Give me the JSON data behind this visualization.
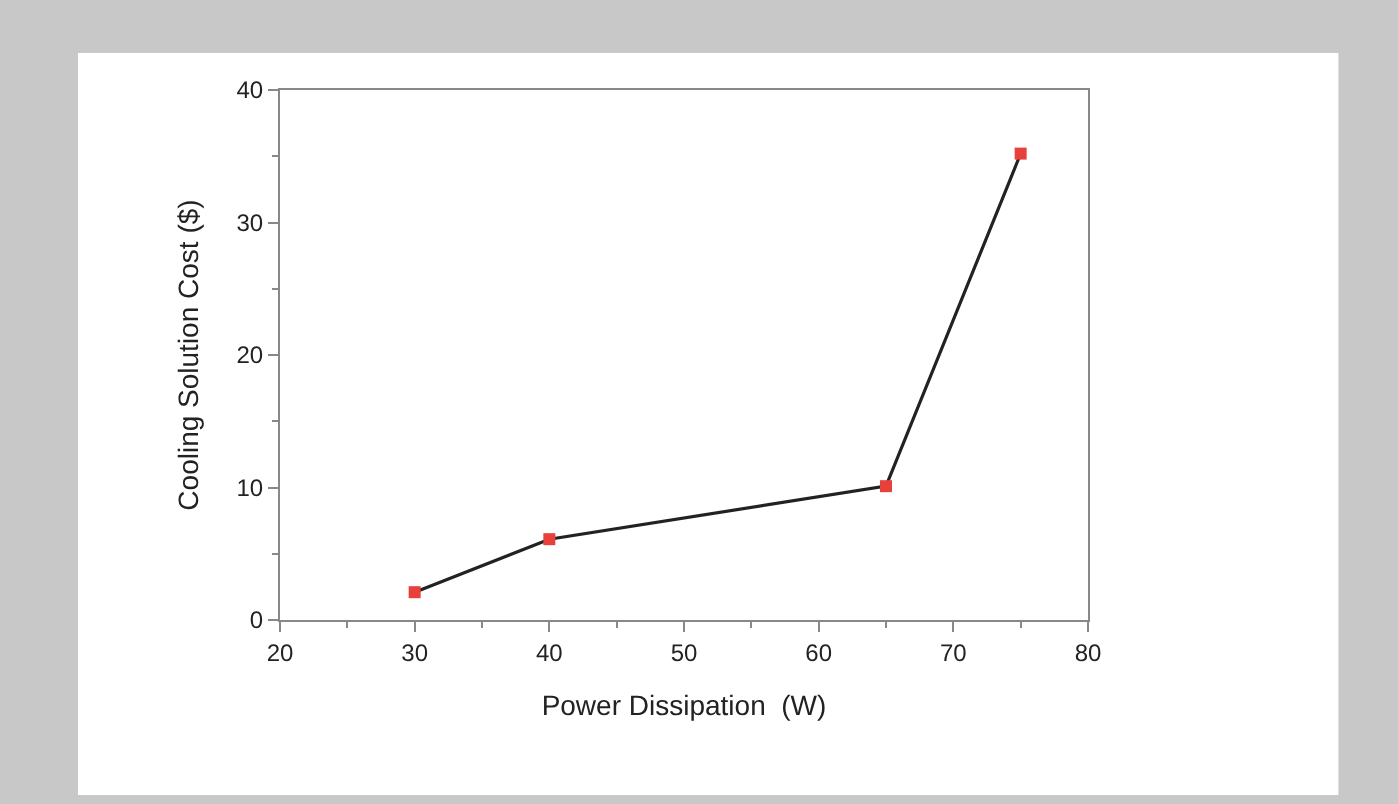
{
  "chart_data": {
    "type": "line",
    "xlabel": "Power Dissipation  (W)",
    "ylabel": "Cooling Solution Cost ($)",
    "x": [
      30,
      40,
      65,
      75
    ],
    "series": [
      {
        "color": "#222222",
        "values": [
          2.1,
          6.1,
          10.1,
          35.2
        ]
      }
    ],
    "marker": "square",
    "xlim": [
      20,
      80
    ],
    "xticks": [
      20,
      30,
      40,
      50,
      60,
      70,
      80
    ],
    "ylim": [
      0,
      40
    ],
    "yticks": [
      0,
      10,
      20,
      30,
      40
    ]
  }
}
